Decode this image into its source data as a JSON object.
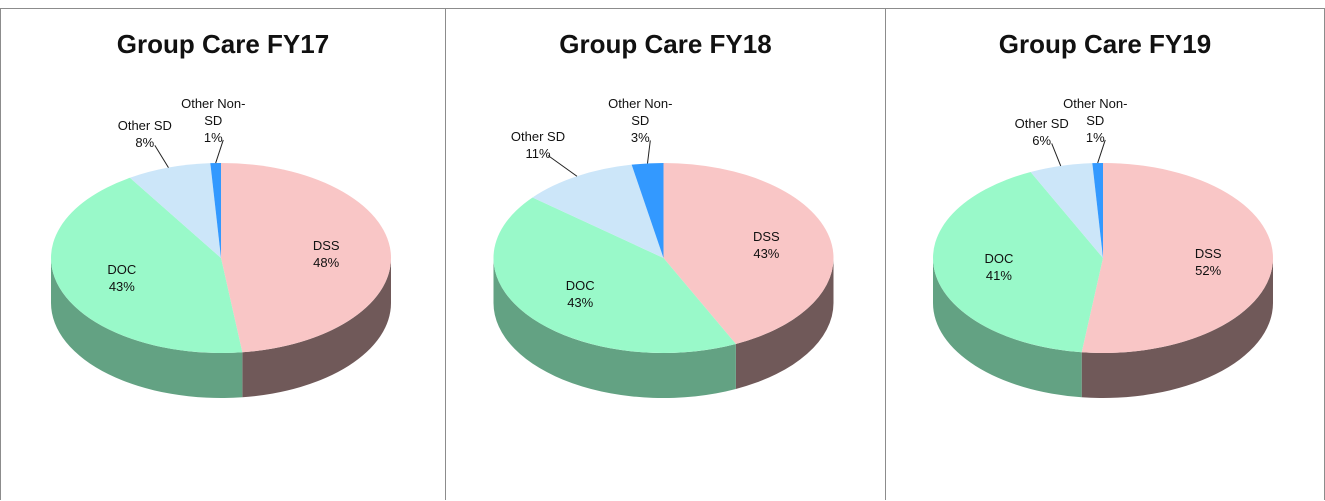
{
  "chart_data": [
    {
      "type": "pie",
      "title": "Group Care FY17",
      "categories": [
        "DSS",
        "DOC",
        "Other SD",
        "Other Non-SD"
      ],
      "values": [
        48,
        43,
        8,
        1
      ],
      "value_labels": [
        "48%",
        "43%",
        "8%",
        "1%"
      ],
      "colors": [
        "#f9c6c6",
        "#99f9c9",
        "#cce6f9",
        "#3399ff"
      ]
    },
    {
      "type": "pie",
      "title": "Group Care FY18",
      "categories": [
        "DSS",
        "DOC",
        "Other SD",
        "Other Non-SD"
      ],
      "values": [
        43,
        43,
        11,
        3
      ],
      "value_labels": [
        "43%",
        "43%",
        "11%",
        "3%"
      ],
      "colors": [
        "#f9c6c6",
        "#99f9c9",
        "#cce6f9",
        "#3399ff"
      ]
    },
    {
      "type": "pie",
      "title": "Group Care FY19",
      "categories": [
        "DSS",
        "DOC",
        "Other SD",
        "Other Non-SD"
      ],
      "values": [
        52,
        41,
        6,
        1
      ],
      "value_labels": [
        "52%",
        "41%",
        "6%",
        "1%"
      ],
      "colors": [
        "#f9c6c6",
        "#99f9c9",
        "#cce6f9",
        "#3399ff"
      ]
    }
  ]
}
